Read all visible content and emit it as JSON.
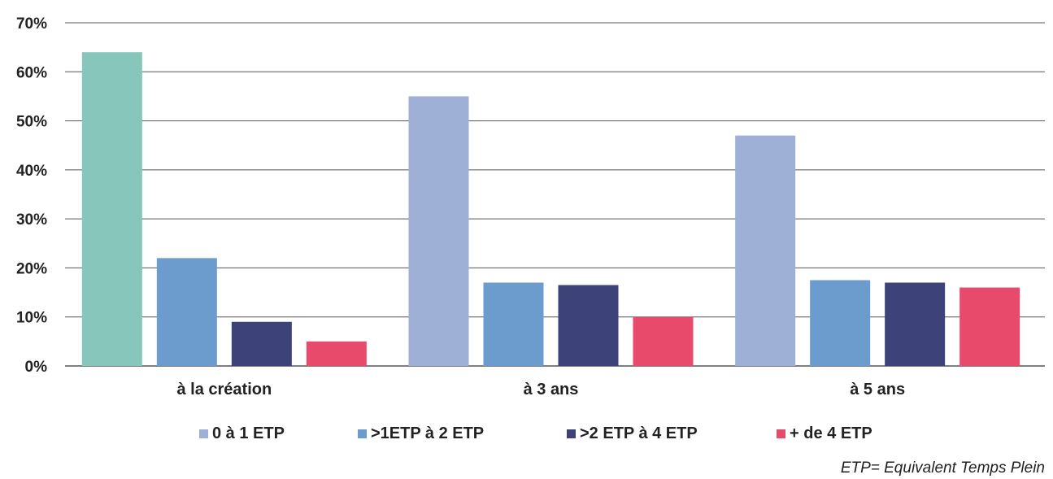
{
  "chart_data": {
    "type": "bar",
    "categories": [
      "à la création",
      "à 3 ans",
      "à 5 ans"
    ],
    "series": [
      {
        "name": "0 à 1 ETP",
        "values": [
          64,
          55,
          47
        ],
        "color": "#9fb0d6",
        "first_bar_color": "#86c6bb"
      },
      {
        "name": ">1ETP à 2 ETP",
        "values": [
          22,
          17,
          17.5
        ],
        "color": "#6c9bcd"
      },
      {
        "name": ">2 ETP à 4 ETP",
        "values": [
          9,
          16.5,
          17
        ],
        "color": "#3d4378"
      },
      {
        "name": "+ de 4 ETP",
        "values": [
          5,
          10,
          16
        ],
        "color": "#e84a6c"
      }
    ],
    "ylim": [
      0,
      70
    ],
    "yticks": [
      "0%",
      "10%",
      "20%",
      "30%",
      "40%",
      "50%",
      "60%",
      "70%"
    ],
    "grid": true,
    "legend": "bottom",
    "xlabel": "",
    "ylabel": "",
    "title": "",
    "note": "ETP= Equivalent Temps Plein"
  }
}
